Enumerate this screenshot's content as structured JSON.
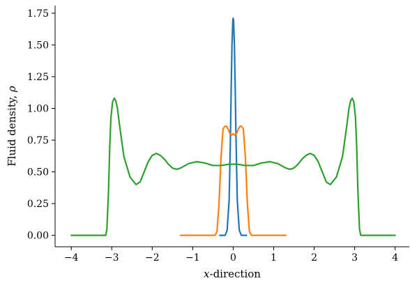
{
  "chart_data": {
    "type": "line",
    "title": "",
    "xlabel_italic": "x",
    "xlabel_rest": "-direction",
    "ylabel_text": "Fluid density, ",
    "ylabel_symbol": "ρ",
    "xlim": [
      -4.4,
      4.35
    ],
    "ylim": [
      -0.09,
      1.81
    ],
    "xticks": [
      -4,
      -3,
      -2,
      -1,
      0,
      1,
      2,
      3,
      4
    ],
    "xtick_labels": [
      "−4",
      "−3",
      "−2",
      "−1",
      "0",
      "1",
      "2",
      "3",
      "4"
    ],
    "yticks": [
      0.0,
      0.25,
      0.5,
      0.75,
      1.0,
      1.25,
      1.5,
      1.75
    ],
    "ytick_labels": [
      "0.00",
      "0.25",
      "0.50",
      "0.75",
      "1.00",
      "1.25",
      "1.50",
      "1.75"
    ],
    "grid": false,
    "series": [
      {
        "color": "#1f77b4",
        "x": [
          -0.33,
          -0.2,
          -0.15,
          -0.1,
          -0.07,
          -0.05,
          -0.03,
          -0.01,
          0.0,
          0.01,
          0.03,
          0.05,
          0.07,
          0.1,
          0.15,
          0.2,
          0.33
        ],
        "y": [
          0.0,
          0.0,
          0.04,
          0.28,
          0.75,
          1.15,
          1.5,
          1.69,
          1.71,
          1.69,
          1.5,
          1.15,
          0.75,
          0.28,
          0.04,
          0.0,
          0.0
        ]
      },
      {
        "color": "#ff7f0e",
        "x": [
          -1.3,
          -0.55,
          -0.45,
          -0.4,
          -0.35,
          -0.3,
          -0.25,
          -0.2,
          -0.17,
          -0.13,
          -0.08,
          -0.04,
          0.0,
          0.04,
          0.08,
          0.13,
          0.17,
          0.2,
          0.25,
          0.3,
          0.35,
          0.4,
          0.45,
          0.55,
          1.3
        ],
        "y": [
          0.0,
          0.0,
          0.0,
          0.03,
          0.25,
          0.62,
          0.84,
          0.86,
          0.86,
          0.84,
          0.8,
          0.79,
          0.8,
          0.79,
          0.8,
          0.84,
          0.86,
          0.86,
          0.84,
          0.62,
          0.25,
          0.03,
          0.0,
          0.0,
          0.0
        ]
      },
      {
        "color": "#2ca02c",
        "x": [
          -4.0,
          -3.15,
          -3.12,
          -3.08,
          -3.05,
          -3.02,
          -2.98,
          -2.94,
          -2.9,
          -2.86,
          -2.8,
          -2.7,
          -2.55,
          -2.4,
          -2.3,
          -2.2,
          -2.1,
          -2.0,
          -1.9,
          -1.8,
          -1.7,
          -1.6,
          -1.5,
          -1.4,
          -1.3,
          -1.1,
          -0.9,
          -0.7,
          -0.5,
          -0.3,
          -0.1,
          0.0,
          0.1,
          0.3,
          0.5,
          0.7,
          0.9,
          1.1,
          1.3,
          1.4,
          1.5,
          1.6,
          1.7,
          1.8,
          1.9,
          2.0,
          2.1,
          2.2,
          2.3,
          2.4,
          2.55,
          2.7,
          2.8,
          2.86,
          2.9,
          2.94,
          2.98,
          3.02,
          3.05,
          3.08,
          3.12,
          3.15,
          4.0
        ],
        "y": [
          0.0,
          0.0,
          0.05,
          0.35,
          0.7,
          0.93,
          1.05,
          1.08,
          1.06,
          1.0,
          0.85,
          0.62,
          0.46,
          0.4,
          0.42,
          0.5,
          0.58,
          0.63,
          0.645,
          0.63,
          0.6,
          0.56,
          0.53,
          0.52,
          0.53,
          0.565,
          0.58,
          0.57,
          0.55,
          0.55,
          0.56,
          0.56,
          0.56,
          0.55,
          0.55,
          0.57,
          0.58,
          0.565,
          0.53,
          0.52,
          0.53,
          0.56,
          0.6,
          0.63,
          0.645,
          0.63,
          0.58,
          0.5,
          0.42,
          0.4,
          0.46,
          0.62,
          0.85,
          1.0,
          1.06,
          1.08,
          1.05,
          0.93,
          0.7,
          0.35,
          0.05,
          0.0,
          0.0
        ]
      }
    ]
  }
}
